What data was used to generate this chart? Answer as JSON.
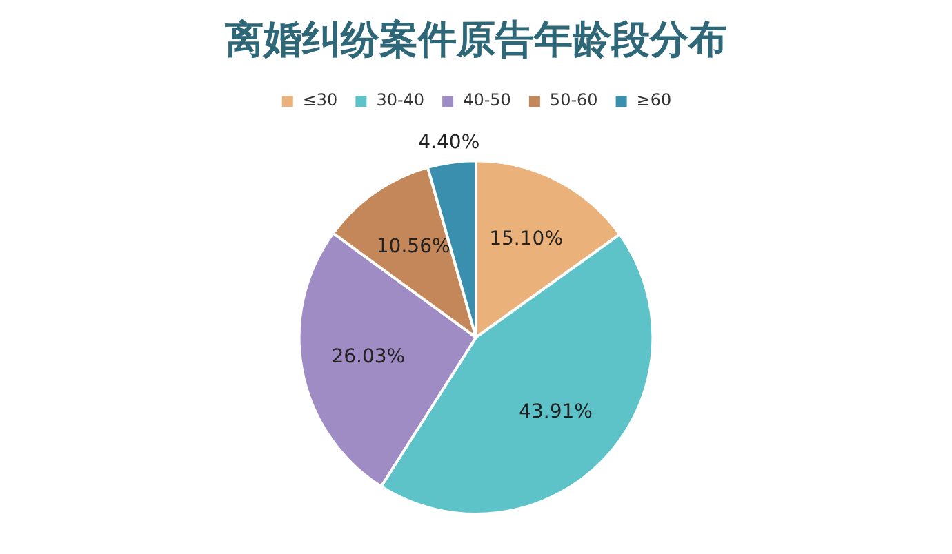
{
  "chart_data": {
    "type": "pie",
    "title": "离婚纠纷案件原告年龄段分布",
    "categories": [
      "≤30",
      "30-40",
      "40-50",
      "50-60",
      "≥60"
    ],
    "values": [
      15.1,
      43.91,
      26.03,
      10.56,
      4.4
    ],
    "value_labels": [
      "15.10%",
      "43.91%",
      "26.03%",
      "10.56%",
      "4.40%"
    ],
    "colors": [
      "#eab27a",
      "#5ec3c9",
      "#a08cc4",
      "#c4875a",
      "#3a8fae"
    ],
    "legend": "top"
  }
}
